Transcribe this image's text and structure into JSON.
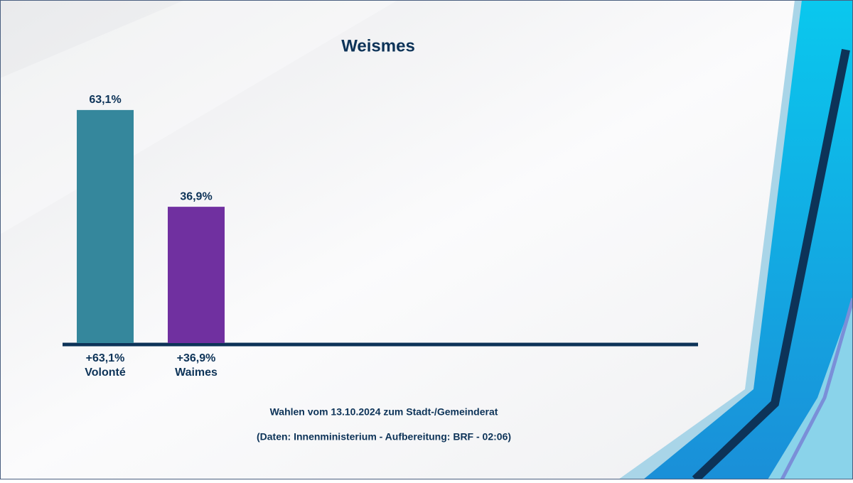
{
  "chart_data": {
    "type": "bar",
    "title": "Weismes",
    "categories": [
      "Volonté",
      "Waimes"
    ],
    "values": [
      63.1,
      36.9
    ],
    "value_labels": [
      "63,1%",
      "36,9%"
    ],
    "change_labels": [
      "+63,1%",
      "+36,9%"
    ],
    "colors": [
      "#35879c",
      "#7030a0"
    ],
    "footnotes": [
      "Wahlen vom 13.10.2024 zum Stadt-/Gemeinderat",
      "(Daten: Innenministerium - Aufbereitung: BRF - 02:06)"
    ]
  }
}
